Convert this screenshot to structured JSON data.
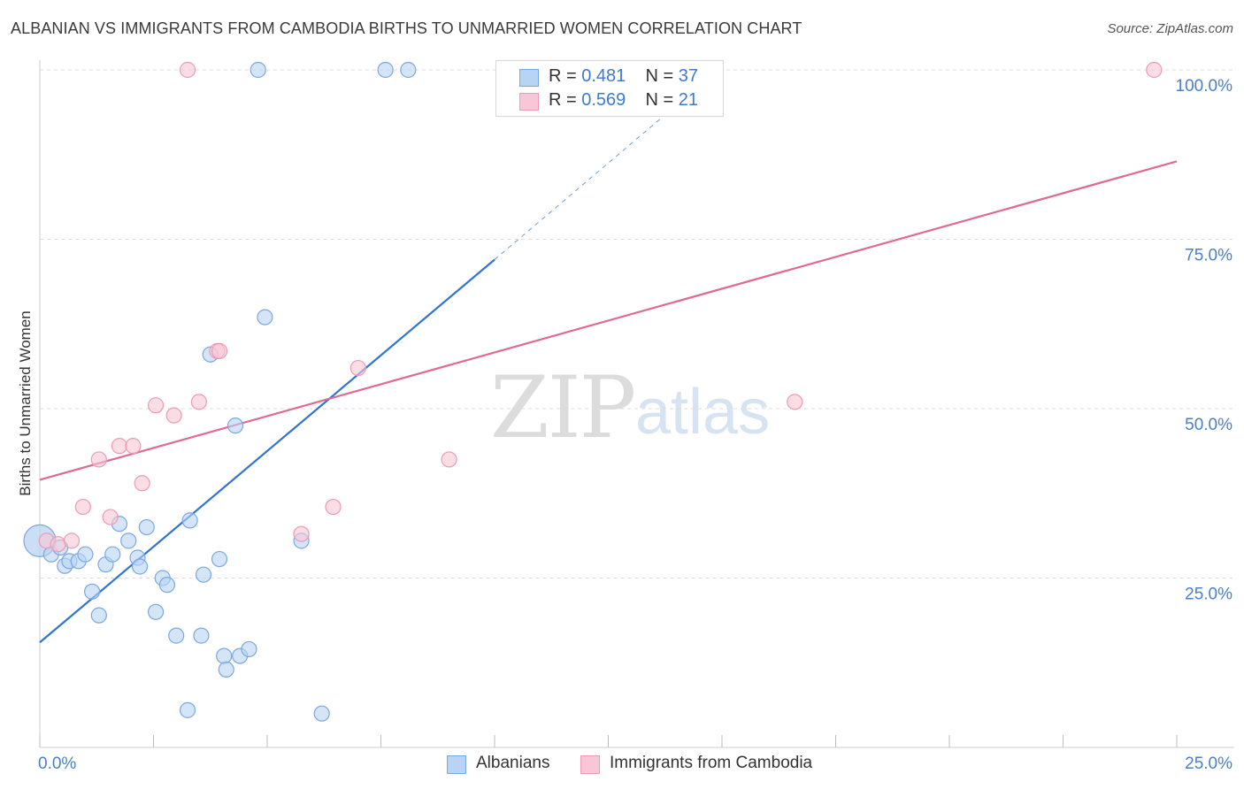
{
  "title": "ALBANIAN VS IMMIGRANTS FROM CAMBODIA BIRTHS TO UNMARRIED WOMEN CORRELATION CHART",
  "source": "Source: ZipAtlas.com",
  "watermark": {
    "zip": "ZIP",
    "atlas": "atlas"
  },
  "legend": {
    "rows": [
      {
        "r_label": "R =",
        "r_value": "0.481",
        "n_label": "N =",
        "n_value": "37"
      },
      {
        "r_label": "R =",
        "r_value": "0.569",
        "n_label": "N =",
        "n_value": "21"
      }
    ]
  },
  "bottom_legend": {
    "albanians": "Albanians",
    "cambodia": "Immigrants from Cambodia"
  },
  "colors": {
    "blue_fill": "#b8d3f3",
    "blue_stroke": "#7aa8e0",
    "blue_line": "#2f74d0",
    "pink_fill": "#f8c6d6",
    "pink_stroke": "#ee9ab6",
    "pink_line": "#e06a93",
    "tick_text": "#4a7fc9",
    "grid": "#dddddd"
  },
  "chart_data": {
    "type": "scatter",
    "title": "ALBANIAN VS IMMIGRANTS FROM CAMBODIA BIRTHS TO UNMARRIED WOMEN CORRELATION CHART",
    "xlabel": "",
    "ylabel": "Births to Unmarried Women",
    "xlim": [
      0,
      25
    ],
    "ylim": [
      0,
      100
    ],
    "x_tick_labels": [
      "0.0%",
      "25.0%"
    ],
    "y_tick_labels": [
      "25.0%",
      "50.0%",
      "75.0%",
      "100.0%"
    ],
    "y_ticks": [
      25,
      50,
      75,
      100
    ],
    "grid": true,
    "legend_placement": "top-center",
    "series": [
      {
        "name": "Albanians",
        "R": 0.481,
        "N": 37,
        "points": [
          [
            0.0,
            30.5
          ],
          [
            0.25,
            28.5
          ],
          [
            0.45,
            29.5
          ],
          [
            0.55,
            26.8
          ],
          [
            0.65,
            27.5
          ],
          [
            0.85,
            27.5
          ],
          [
            1.0,
            28.5
          ],
          [
            1.15,
            23.0
          ],
          [
            1.3,
            19.5
          ],
          [
            1.45,
            27.0
          ],
          [
            1.6,
            28.5
          ],
          [
            1.75,
            33.0
          ],
          [
            1.95,
            30.5
          ],
          [
            2.15,
            28.0
          ],
          [
            2.2,
            26.7
          ],
          [
            2.35,
            32.5
          ],
          [
            2.55,
            20.0
          ],
          [
            2.7,
            25.0
          ],
          [
            2.8,
            24.0
          ],
          [
            3.0,
            16.5
          ],
          [
            3.25,
            5.5
          ],
          [
            3.3,
            33.5
          ],
          [
            3.55,
            16.5
          ],
          [
            3.6,
            25.5
          ],
          [
            3.75,
            58.0
          ],
          [
            3.95,
            27.8
          ],
          [
            4.05,
            13.5
          ],
          [
            4.1,
            11.5
          ],
          [
            4.3,
            47.5
          ],
          [
            4.4,
            13.5
          ],
          [
            4.6,
            14.5
          ],
          [
            4.8,
            100.0
          ],
          [
            4.95,
            63.5
          ],
          [
            5.75,
            30.5
          ],
          [
            6.2,
            5.0
          ],
          [
            7.6,
            100.0
          ],
          [
            8.1,
            100.0
          ]
        ],
        "trendline": {
          "x": [
            0.0,
            10.0
          ],
          "y": [
            15.5,
            72.0
          ],
          "dashed_extension": {
            "x": [
              10.0,
              15.0
            ],
            "y": [
              72.0,
              100.5
            ]
          }
        }
      },
      {
        "name": "Immigrants from Cambodia",
        "R": 0.569,
        "N": 21,
        "points": [
          [
            0.15,
            30.5
          ],
          [
            0.4,
            30.0
          ],
          [
            0.7,
            30.5
          ],
          [
            0.95,
            35.5
          ],
          [
            1.3,
            42.5
          ],
          [
            1.55,
            34.0
          ],
          [
            1.75,
            44.5
          ],
          [
            2.05,
            44.5
          ],
          [
            2.25,
            39.0
          ],
          [
            2.55,
            50.5
          ],
          [
            2.95,
            49.0
          ],
          [
            3.25,
            100.0
          ],
          [
            3.5,
            51.0
          ],
          [
            3.9,
            58.5
          ],
          [
            3.95,
            58.5
          ],
          [
            5.75,
            31.5
          ],
          [
            6.45,
            35.5
          ],
          [
            7.0,
            56.0
          ],
          [
            9.0,
            42.5
          ],
          [
            16.6,
            51.0
          ],
          [
            24.5,
            100.0
          ]
        ],
        "trendline": {
          "x": [
            0.0,
            25.0
          ],
          "y": [
            39.5,
            86.5
          ]
        }
      }
    ]
  }
}
